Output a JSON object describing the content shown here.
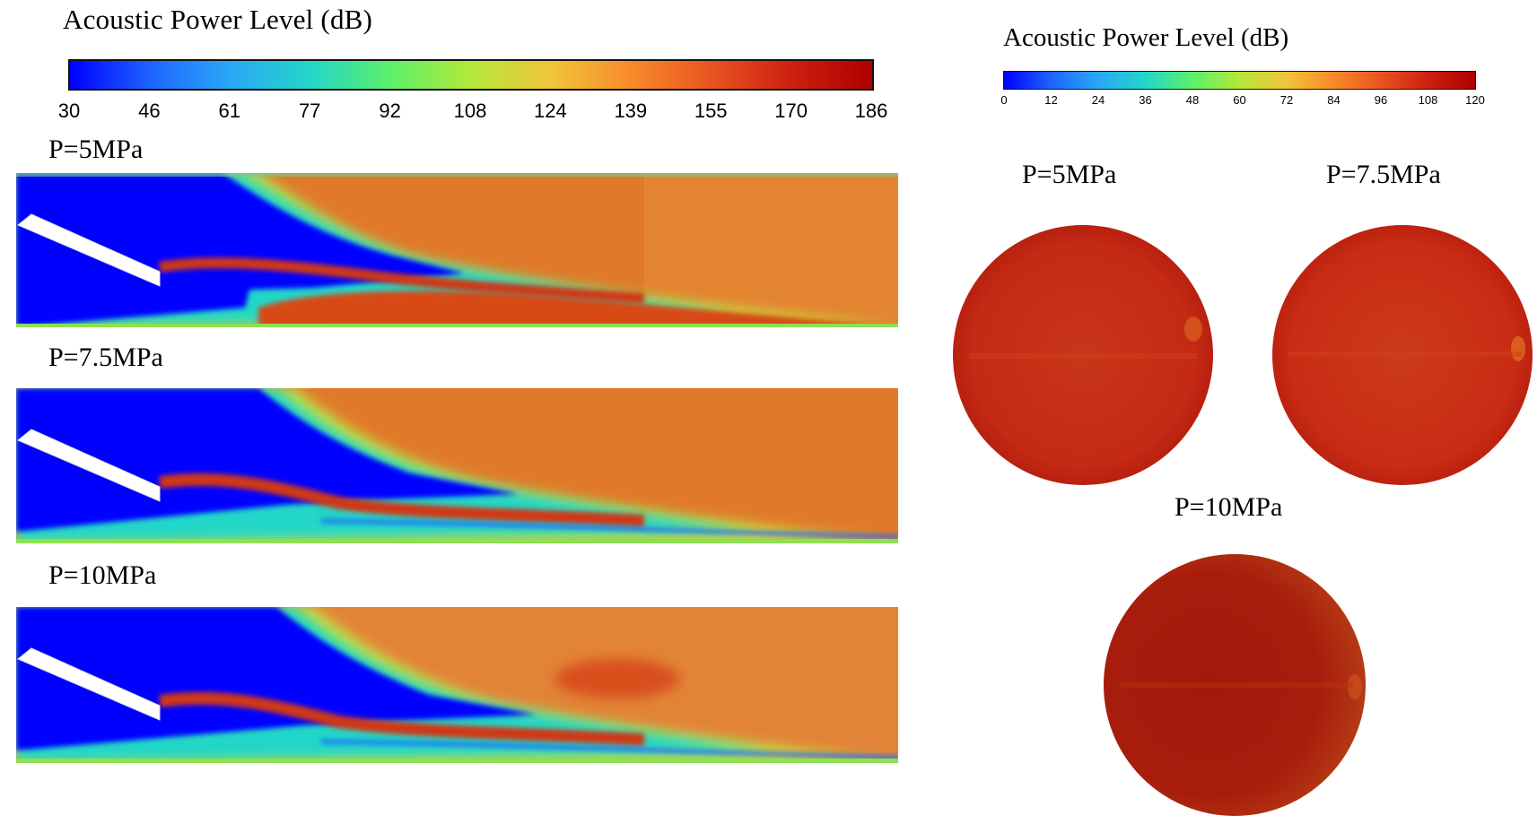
{
  "left_colorbar": {
    "title": "Acoustic  Power Level   (dB)",
    "ticks": [
      "30",
      "46",
      "61",
      "77",
      "92",
      "108",
      "124",
      "139",
      "155",
      "170",
      "186"
    ]
  },
  "right_colorbar": {
    "title": "Acoustic  Power Level    (dB)",
    "ticks": [
      "0",
      "12",
      "24",
      "36",
      "48",
      "60",
      "72",
      "84",
      "96",
      "108",
      "120"
    ]
  },
  "colormap": [
    "#0000ff",
    "#1e64ff",
    "#2aa8f5",
    "#24d6c8",
    "#5cf06a",
    "#b4e83a",
    "#f0c43a",
    "#f88a2a",
    "#e85420",
    "#cc2010",
    "#b00000"
  ],
  "left_panels": [
    {
      "label": "P=5MPa"
    },
    {
      "label": "P=7.5MPa"
    },
    {
      "label": "P=10MPa"
    }
  ],
  "right_panels": [
    {
      "label": "P=5MPa",
      "fill": "#c42a14"
    },
    {
      "label": "P=7.5MPa",
      "fill": "#c82c14"
    },
    {
      "label": "P=10MPa",
      "fill": "#a81c0c"
    }
  ]
}
